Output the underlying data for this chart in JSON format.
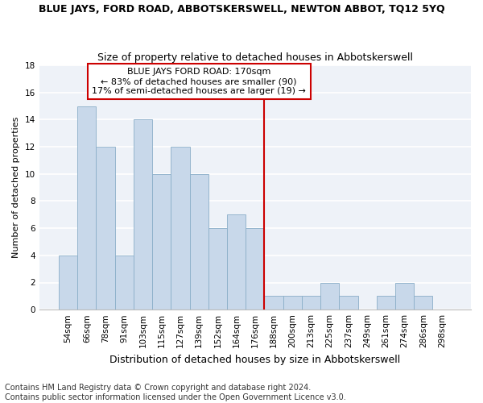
{
  "title": "BLUE JAYS, FORD ROAD, ABBOTSKERSWELL, NEWTON ABBOT, TQ12 5YQ",
  "subtitle": "Size of property relative to detached houses in Abbotskerswell",
  "xlabel": "Distribution of detached houses by size in Abbotskerswell",
  "ylabel": "Number of detached properties",
  "categories": [
    "54sqm",
    "66sqm",
    "78sqm",
    "91sqm",
    "103sqm",
    "115sqm",
    "127sqm",
    "139sqm",
    "152sqm",
    "164sqm",
    "176sqm",
    "188sqm",
    "200sqm",
    "213sqm",
    "225sqm",
    "237sqm",
    "249sqm",
    "261sqm",
    "274sqm",
    "286sqm",
    "298sqm"
  ],
  "values": [
    4,
    15,
    12,
    4,
    14,
    10,
    12,
    10,
    6,
    7,
    6,
    1,
    1,
    1,
    2,
    1,
    0,
    1,
    2,
    1,
    0
  ],
  "bar_color": "#c8d8ea",
  "bar_edge_color": "#8aaec8",
  "ylim": [
    0,
    18
  ],
  "yticks": [
    0,
    2,
    4,
    6,
    8,
    10,
    12,
    14,
    16,
    18
  ],
  "vline_x": 10.5,
  "vline_color": "#cc0000",
  "annotation_text": "BLUE JAYS FORD ROAD: 170sqm\n← 83% of detached houses are smaller (90)\n17% of semi-detached houses are larger (19) →",
  "annotation_box_facecolor": "#ffffff",
  "annotation_box_edgecolor": "#cc0000",
  "footer_line1": "Contains HM Land Registry data © Crown copyright and database right 2024.",
  "footer_line2": "Contains public sector information licensed under the Open Government Licence v3.0.",
  "fig_facecolor": "#ffffff",
  "ax_facecolor": "#eef2f8",
  "grid_color": "#ffffff",
  "title_fontsize": 9,
  "subtitle_fontsize": 9,
  "annotation_fontsize": 8,
  "ylabel_fontsize": 8,
  "xlabel_fontsize": 9,
  "tick_fontsize": 7.5,
  "footer_fontsize": 7
}
